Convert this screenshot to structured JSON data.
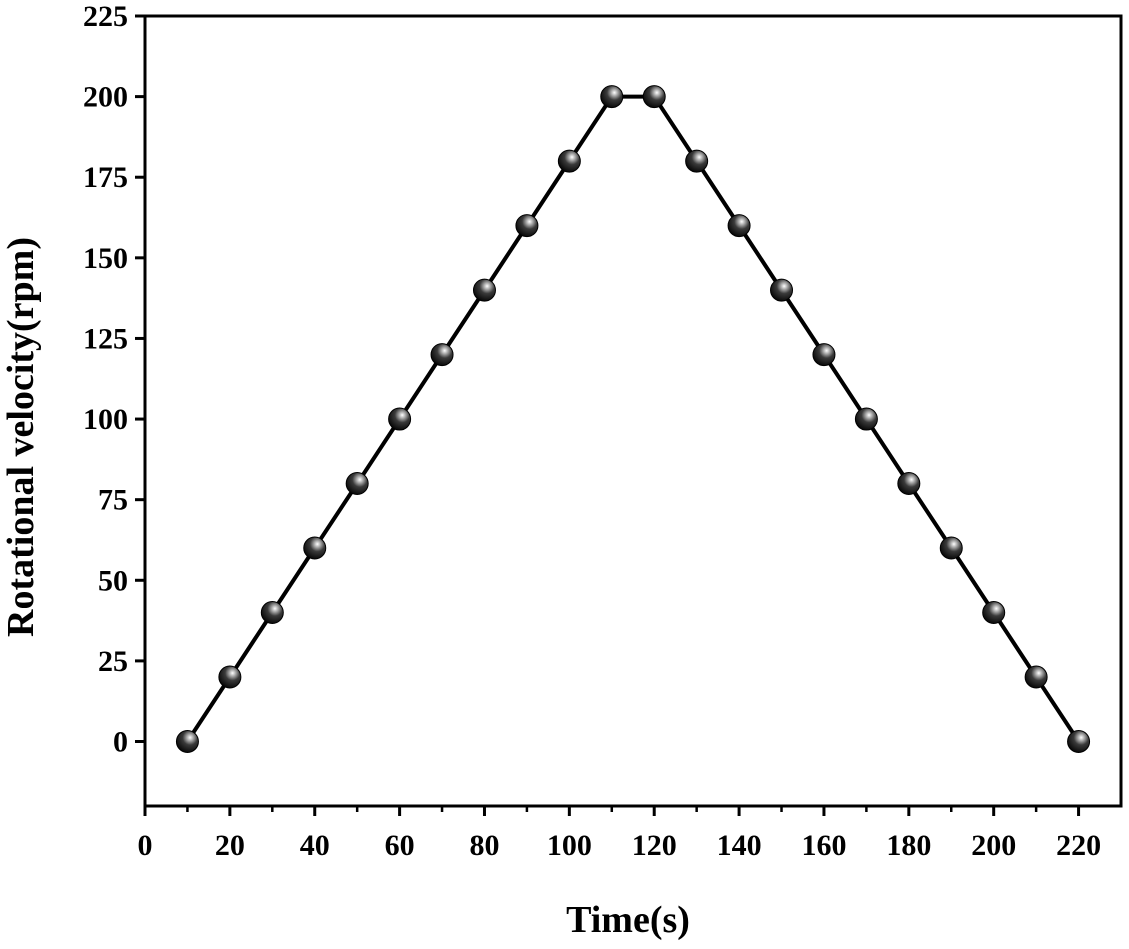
{
  "chart_data": {
    "type": "line",
    "title": "",
    "xlabel": "Time(s)",
    "ylabel": "Rotational velocity(rpm)",
    "xlim": [
      0,
      230
    ],
    "ylim": [
      -20,
      225
    ],
    "x_ticks": [
      0,
      20,
      40,
      60,
      80,
      100,
      120,
      140,
      160,
      180,
      200,
      220
    ],
    "x_minor_ticks": [
      10,
      30,
      50,
      70,
      90,
      110,
      130,
      150,
      170,
      190,
      210
    ],
    "y_ticks": [
      0,
      25,
      50,
      75,
      100,
      125,
      150,
      175,
      200,
      225
    ],
    "grid": false,
    "legend": "none",
    "series": [
      {
        "x": [
          10,
          20,
          30,
          40,
          50,
          60,
          70,
          80,
          90,
          100,
          110,
          120,
          130,
          140,
          150,
          160,
          170,
          180,
          190,
          200,
          210,
          220
        ],
        "y": [
          0,
          20,
          40,
          60,
          80,
          100,
          120,
          140,
          160,
          180,
          200,
          200,
          180,
          160,
          140,
          120,
          100,
          80,
          60,
          40,
          20,
          0
        ],
        "color": "#000000",
        "marker": "sphere"
      }
    ]
  }
}
